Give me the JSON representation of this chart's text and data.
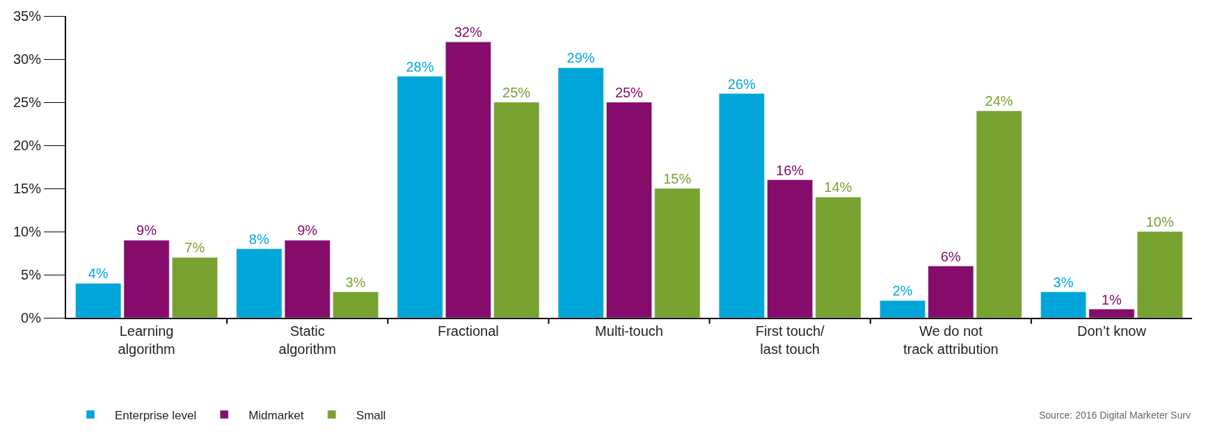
{
  "chart_data": {
    "type": "bar",
    "categories": [
      "Learning\nalgorithm",
      "Static\nalgorithm",
      "Fractional",
      "Multi-touch",
      "First touch/\nlast touch",
      "We do not\ntrack attribution",
      "Don’t know"
    ],
    "series": [
      {
        "name": "Enterprise level",
        "color": "#00a6d9",
        "values": [
          4,
          8,
          28,
          29,
          26,
          2,
          3
        ],
        "value_labels": [
          "4%",
          "8%",
          "28%",
          "29%",
          "26%",
          "2%",
          "3%"
        ]
      },
      {
        "name": "Midmarket",
        "color": "#850c6b",
        "values": [
          9,
          9,
          32,
          25,
          16,
          6,
          1
        ],
        "value_labels": [
          "9%",
          "9%",
          "32%",
          "25%",
          "16%",
          "6%",
          "1%"
        ]
      },
      {
        "name": "Small",
        "color": "#78a22f",
        "values": [
          7,
          3,
          25,
          15,
          14,
          24,
          10
        ],
        "value_labels": [
          "7%",
          "3%",
          "25%",
          "15%",
          "14%",
          "24%",
          "10%"
        ]
      }
    ],
    "ylim": [
      0,
      35
    ],
    "yticks": [
      {
        "value": 0,
        "label": "0%"
      },
      {
        "value": 5,
        "label": "5%"
      },
      {
        "value": 10,
        "label": "10%"
      },
      {
        "value": 15,
        "label": "15%"
      },
      {
        "value": 20,
        "label": "20%"
      },
      {
        "value": 25,
        "label": "25%"
      },
      {
        "value": 30,
        "label": "30%"
      },
      {
        "value": 35,
        "label": "35%"
      }
    ],
    "legend": "bottom left",
    "annotations": [
      "Source: 2016 Digital Marketer Surv"
    ]
  }
}
